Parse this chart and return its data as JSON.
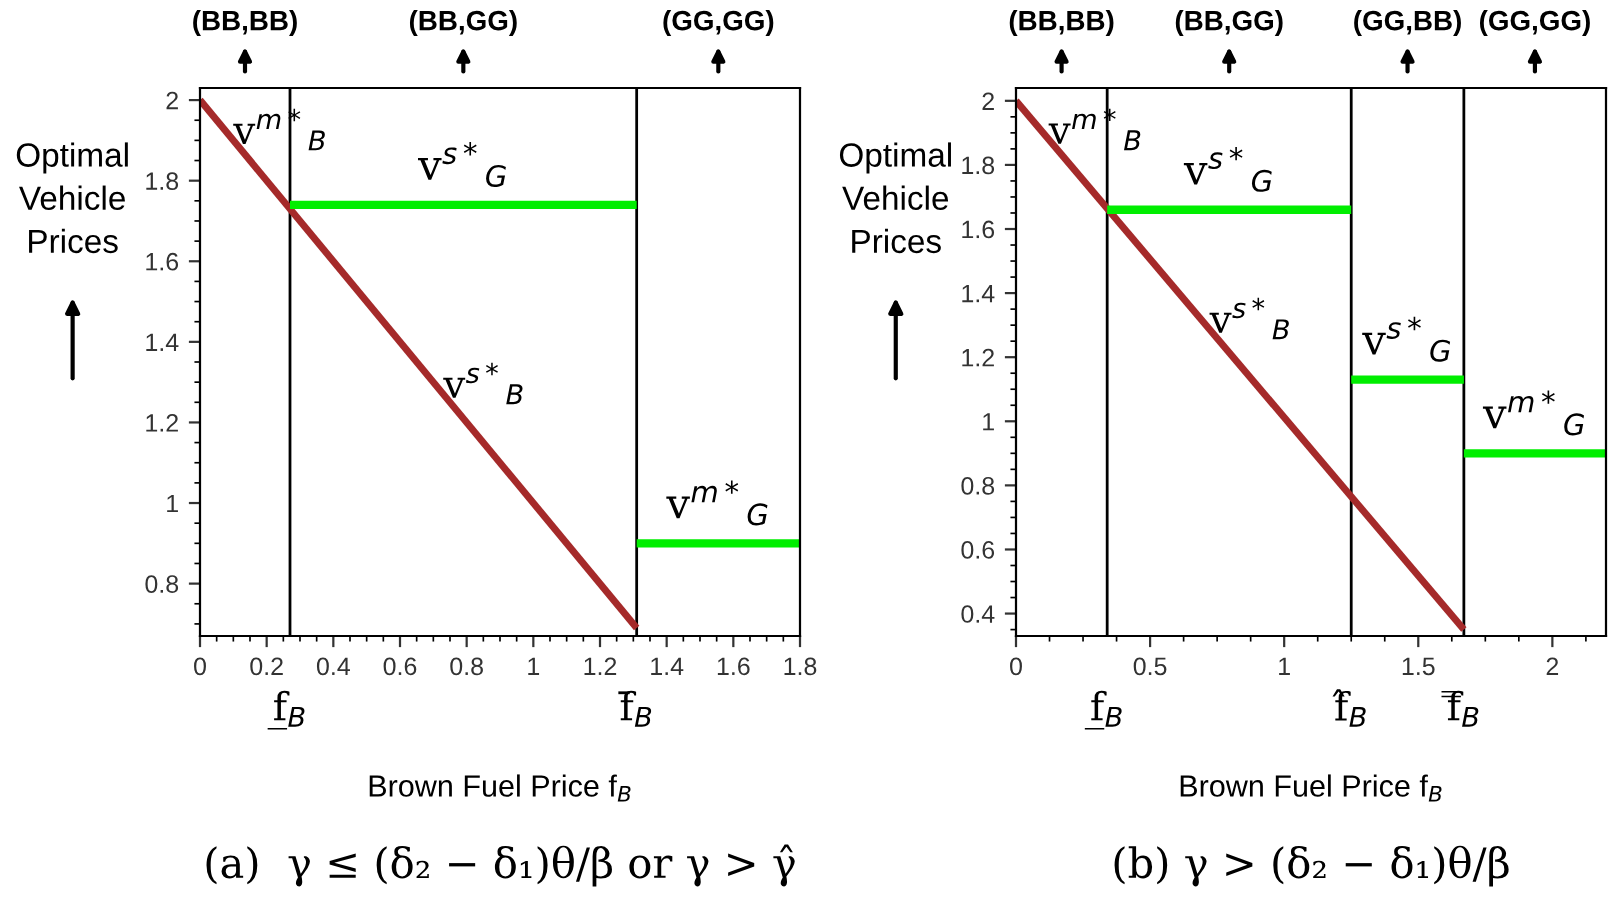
{
  "chart_data": [
    {
      "type": "line",
      "title": "(a)  γ ≤ (δ₂ − δ₁)θ/β or γ > γ̂",
      "xlabel": "Brown Fuel Price f$_{B}$",
      "ylabel": "Optimal\nVehicle\nPrices",
      "series": [
        {
          "color": "#a52a2a",
          "x": [
            0,
            1.31
          ],
          "values": [
            2,
            0.69
          ]
        },
        {
          "name": "v$^{s*}$$_{G}$",
          "color": "#00ee00",
          "x": [
            0.27,
            1.31
          ],
          "values": [
            1.74,
            1.74
          ]
        },
        {
          "name": "v$^{m*}$$_{G}$",
          "color": "#00ee00",
          "x": [
            1.31,
            1.8
          ],
          "values": [
            0.9,
            0.9
          ]
        }
      ],
      "ref_lines": [
        {
          "axis": "x",
          "value": 0.27,
          "label": "f̲$_{B}$"
        },
        {
          "axis": "x",
          "value": 1.31,
          "label": "f̄$_{B}$"
        }
      ],
      "xlim": [
        0,
        1.8
      ],
      "xticks": [
        0,
        0.2,
        0.4,
        0.6,
        0.8,
        1,
        1.2,
        1.4,
        1.6,
        1.8
      ],
      "ylim": [
        0.67,
        2.03
      ],
      "yticks": [
        0.8,
        1,
        1.2,
        1.4,
        1.6,
        1.8,
        2
      ],
      "annotations": [
        {
          "text": "v$^{m*}$$_{B}$",
          "x": 0.05,
          "y": 1.95
        },
        {
          "text": "v$^{s*}$$_{B}$",
          "x": 0.68,
          "y": 1.32
        },
        "(BB,BB)",
        "(BB,GG)",
        "(GG,GG)"
      ]
    },
    {
      "type": "line",
      "title": "(b) γ > (δ₂ − δ₁)θ/β",
      "xlabel": "Brown Fuel Price f$_{B}$",
      "ylabel": "Optimal\nVehicle\nPrices",
      "series": [
        {
          "color": "#a52a2a",
          "x": [
            0,
            1.67
          ],
          "values": [
            2,
            0.35
          ]
        },
        {
          "name": "v$^{s*}$$_{G}$",
          "color": "#00ee00",
          "x": [
            0.34,
            1.25
          ],
          "values": [
            1.66,
            1.66
          ]
        },
        {
          "name": "v$^{s*}$$_{G}$",
          "color": "#00ee00",
          "x": [
            1.25,
            1.67
          ],
          "values": [
            1.13,
            1.13
          ]
        },
        {
          "name": "v$^{m*}$$_{G}$",
          "color": "#00ee00",
          "x": [
            1.67,
            2.2
          ],
          "values": [
            0.9,
            0.9
          ]
        }
      ],
      "ref_lines": [
        {
          "axis": "x",
          "value": 0.34,
          "label": "f̲$_{B}$"
        },
        {
          "axis": "x",
          "value": 1.25,
          "label": "f̂$_{B}$"
        },
        {
          "axis": "x",
          "value": 1.67,
          "label": "f̿$_{B}$"
        }
      ],
      "xlim": [
        0,
        2.2
      ],
      "xticks": [
        0,
        0.5,
        1,
        1.5,
        2
      ],
      "ylim": [
        0.33,
        2.04
      ],
      "yticks": [
        0.4,
        0.6,
        0.8,
        1,
        1.2,
        1.4,
        1.6,
        1.8,
        2
      ],
      "annotations": [
        {
          "text": "v$^{m*}$$_{B}$",
          "x": 0.06,
          "y": 1.94
        },
        {
          "text": "v$^{s*}$$_{B}$",
          "x": 0.66,
          "y": 1.35
        },
        "(BB,BB)",
        "(BB,GG)",
        "(GG,BB)",
        "(GG,GG)"
      ]
    }
  ]
}
